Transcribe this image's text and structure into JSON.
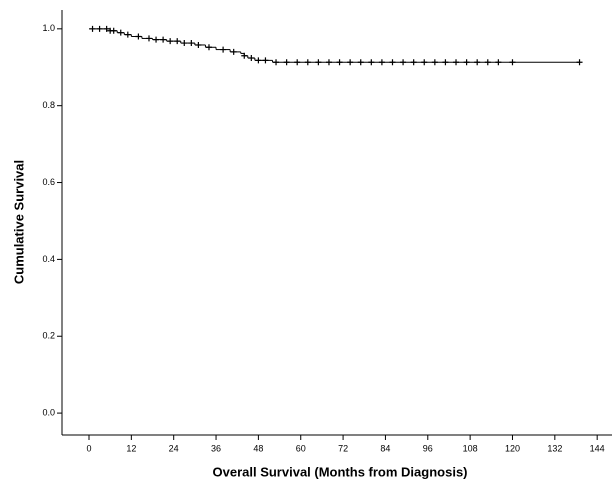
{
  "chart_data": {
    "type": "survival",
    "x_label": "Overall Survival (Months from Diagnosis)",
    "y_label": "Cumulative Survival",
    "color": "#000000",
    "x": [
      0,
      6,
      8,
      10,
      12,
      15,
      18,
      22,
      26,
      30,
      33,
      36,
      40,
      43,
      44,
      45,
      47,
      52,
      139
    ],
    "values": [
      1.0,
      0.995,
      0.99,
      0.985,
      0.98,
      0.975,
      0.972,
      0.968,
      0.963,
      0.958,
      0.952,
      0.946,
      0.94,
      0.936,
      0.93,
      0.924,
      0.918,
      0.913,
      0.913
    ],
    "censored_x": [
      1,
      3,
      5,
      6,
      7,
      9,
      11,
      14,
      17,
      19,
      21,
      23,
      25,
      27,
      29,
      31,
      34,
      38,
      41,
      44,
      46,
      48,
      50,
      53,
      56,
      59,
      62,
      65,
      68,
      71,
      74,
      77,
      80,
      83,
      86,
      89,
      92,
      95,
      98,
      101,
      104,
      107,
      110,
      113,
      116,
      120,
      139
    ],
    "censored_values": [
      1.0,
      1.0,
      1.0,
      0.995,
      0.995,
      0.99,
      0.985,
      0.98,
      0.975,
      0.972,
      0.972,
      0.968,
      0.968,
      0.963,
      0.963,
      0.958,
      0.952,
      0.946,
      0.94,
      0.93,
      0.924,
      0.918,
      0.918,
      0.913,
      0.913,
      0.913,
      0.913,
      0.913,
      0.913,
      0.913,
      0.913,
      0.913,
      0.913,
      0.913,
      0.913,
      0.913,
      0.913,
      0.913,
      0.913,
      0.913,
      0.913,
      0.913,
      0.913,
      0.913,
      0.913,
      0.913,
      0.913
    ],
    "xlim": [
      -7.65,
      148.2
    ],
    "ylim": [
      -0.057,
      1.049
    ],
    "xticks": [
      0,
      12,
      24,
      36,
      48,
      60,
      72,
      84,
      96,
      108,
      120,
      132,
      144
    ],
    "yticks": [
      {
        "value": 0,
        "label": "0.0"
      },
      0.2,
      0.4,
      0.6,
      0.8,
      {
        "value": 1,
        "label": "1.0"
      }
    ]
  }
}
